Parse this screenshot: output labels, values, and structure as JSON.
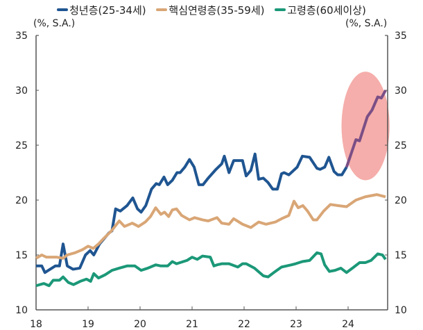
{
  "chart_data": {
    "type": "line",
    "title": "",
    "unit_left": "(%, S.A.)",
    "unit_right": "(%, S.A.)",
    "ylim": [
      10,
      35
    ],
    "yticks": [
      10,
      15,
      20,
      25,
      30,
      35
    ],
    "xlim": [
      18,
      24.77
    ],
    "xticks": [
      18,
      19,
      20,
      21,
      22,
      23,
      24
    ],
    "xtick_labels": [
      "18",
      "19",
      "20",
      "21",
      "22",
      "23",
      "24"
    ],
    "grid": false,
    "legend_position": "top",
    "highlight": {
      "x_range": [
        23.9,
        24.77
      ],
      "y_range": [
        21.8,
        31.7
      ],
      "color": "#f29a96"
    },
    "series": [
      {
        "name": "청년층(25-34세)",
        "color": "#1f5591",
        "highlight_color": "#7b4f86",
        "points": [
          [
            18.0,
            14.0
          ],
          [
            18.11,
            14.0
          ],
          [
            18.17,
            13.4
          ],
          [
            18.37,
            14.0
          ],
          [
            18.45,
            14.0
          ],
          [
            18.52,
            16.0
          ],
          [
            18.6,
            14.0
          ],
          [
            18.71,
            13.7
          ],
          [
            18.84,
            13.8
          ],
          [
            18.95,
            15.0
          ],
          [
            19.04,
            15.4
          ],
          [
            19.11,
            15.0
          ],
          [
            19.22,
            16.0
          ],
          [
            19.4,
            17.0
          ],
          [
            19.46,
            17.2
          ],
          [
            19.53,
            19.2
          ],
          [
            19.62,
            19.0
          ],
          [
            19.75,
            19.5
          ],
          [
            19.86,
            20.2
          ],
          [
            19.95,
            19.2
          ],
          [
            20.02,
            18.9
          ],
          [
            20.11,
            19.5
          ],
          [
            20.22,
            21.0
          ],
          [
            20.31,
            21.5
          ],
          [
            20.37,
            21.4
          ],
          [
            20.46,
            22.1
          ],
          [
            20.53,
            21.4
          ],
          [
            20.62,
            21.8
          ],
          [
            20.71,
            22.5
          ],
          [
            20.77,
            22.5
          ],
          [
            20.86,
            23.0
          ],
          [
            20.95,
            23.7
          ],
          [
            21.04,
            23.0
          ],
          [
            21.13,
            21.4
          ],
          [
            21.21,
            21.4
          ],
          [
            21.31,
            22.0
          ],
          [
            21.46,
            22.8
          ],
          [
            21.57,
            23.3
          ],
          [
            21.62,
            24.0
          ],
          [
            21.71,
            22.5
          ],
          [
            21.8,
            23.6
          ],
          [
            21.97,
            23.6
          ],
          [
            22.04,
            22.2
          ],
          [
            22.13,
            22.7
          ],
          [
            22.21,
            24.2
          ],
          [
            22.28,
            21.9
          ],
          [
            22.37,
            22.0
          ],
          [
            22.46,
            21.6
          ],
          [
            22.55,
            21.0
          ],
          [
            22.64,
            21.0
          ],
          [
            22.72,
            22.4
          ],
          [
            22.77,
            22.5
          ],
          [
            22.86,
            22.3
          ],
          [
            23.02,
            23.0
          ],
          [
            23.12,
            24.0
          ],
          [
            23.26,
            23.9
          ],
          [
            23.4,
            22.9
          ],
          [
            23.46,
            22.8
          ],
          [
            23.55,
            23.0
          ],
          [
            23.63,
            23.9
          ],
          [
            23.73,
            22.6
          ],
          [
            23.8,
            22.3
          ],
          [
            23.88,
            22.3
          ],
          [
            23.97,
            23.0
          ],
          [
            24.15,
            25.5
          ],
          [
            24.22,
            25.4
          ],
          [
            24.37,
            27.6
          ],
          [
            24.46,
            28.2
          ],
          [
            24.57,
            29.4
          ],
          [
            24.64,
            29.3
          ],
          [
            24.72,
            30.0
          ]
        ]
      },
      {
        "name": "핵심연령층(35-59세)",
        "color": "#d9a676",
        "points": [
          [
            18.0,
            14.7
          ],
          [
            18.11,
            15.0
          ],
          [
            18.2,
            14.8
          ],
          [
            18.4,
            14.8
          ],
          [
            18.52,
            14.7
          ],
          [
            18.6,
            15.0
          ],
          [
            18.75,
            15.2
          ],
          [
            18.9,
            15.5
          ],
          [
            19.0,
            15.8
          ],
          [
            19.1,
            15.6
          ],
          [
            19.2,
            16.0
          ],
          [
            19.3,
            16.5
          ],
          [
            19.45,
            17.2
          ],
          [
            19.6,
            18.1
          ],
          [
            19.7,
            17.6
          ],
          [
            19.85,
            17.9
          ],
          [
            19.97,
            17.6
          ],
          [
            20.1,
            18.0
          ],
          [
            20.2,
            18.5
          ],
          [
            20.3,
            19.3
          ],
          [
            20.4,
            18.7
          ],
          [
            20.47,
            18.9
          ],
          [
            20.55,
            18.5
          ],
          [
            20.62,
            19.1
          ],
          [
            20.7,
            19.2
          ],
          [
            20.8,
            18.6
          ],
          [
            20.95,
            18.2
          ],
          [
            21.05,
            18.4
          ],
          [
            21.2,
            18.2
          ],
          [
            21.31,
            18.1
          ],
          [
            21.48,
            18.4
          ],
          [
            21.57,
            17.9
          ],
          [
            21.71,
            17.8
          ],
          [
            21.8,
            18.3
          ],
          [
            21.97,
            17.8
          ],
          [
            22.13,
            17.5
          ],
          [
            22.28,
            18.0
          ],
          [
            22.42,
            17.8
          ],
          [
            22.6,
            18.0
          ],
          [
            22.72,
            18.3
          ],
          [
            22.86,
            18.6
          ],
          [
            22.96,
            19.9
          ],
          [
            23.04,
            19.3
          ],
          [
            23.13,
            19.5
          ],
          [
            23.22,
            19.0
          ],
          [
            23.33,
            18.2
          ],
          [
            23.4,
            18.2
          ],
          [
            23.53,
            19.0
          ],
          [
            23.66,
            19.6
          ],
          [
            23.8,
            19.5
          ],
          [
            23.97,
            19.4
          ],
          [
            24.15,
            20.0
          ],
          [
            24.33,
            20.3
          ],
          [
            24.55,
            20.5
          ],
          [
            24.72,
            20.3
          ]
        ]
      },
      {
        "name": "고령층(60세이상)",
        "color": "#1b9878",
        "points": [
          [
            18.0,
            12.2
          ],
          [
            18.15,
            12.4
          ],
          [
            18.25,
            12.2
          ],
          [
            18.33,
            12.7
          ],
          [
            18.45,
            12.7
          ],
          [
            18.52,
            13.0
          ],
          [
            18.62,
            12.5
          ],
          [
            18.72,
            12.3
          ],
          [
            18.85,
            12.6
          ],
          [
            18.97,
            12.8
          ],
          [
            19.05,
            12.6
          ],
          [
            19.11,
            13.3
          ],
          [
            19.2,
            12.9
          ],
          [
            19.33,
            13.2
          ],
          [
            19.46,
            13.6
          ],
          [
            19.6,
            13.8
          ],
          [
            19.75,
            14.0
          ],
          [
            19.9,
            14.0
          ],
          [
            20.02,
            13.6
          ],
          [
            20.15,
            13.8
          ],
          [
            20.3,
            14.1
          ],
          [
            20.4,
            14.0
          ],
          [
            20.53,
            14.0
          ],
          [
            20.62,
            14.4
          ],
          [
            20.7,
            14.2
          ],
          [
            20.9,
            14.5
          ],
          [
            21.0,
            14.8
          ],
          [
            21.1,
            14.6
          ],
          [
            21.2,
            14.9
          ],
          [
            21.35,
            14.8
          ],
          [
            21.42,
            14.0
          ],
          [
            21.48,
            14.1
          ],
          [
            21.57,
            14.2
          ],
          [
            21.71,
            14.2
          ],
          [
            21.88,
            13.9
          ],
          [
            21.97,
            14.2
          ],
          [
            22.04,
            14.2
          ],
          [
            22.2,
            13.8
          ],
          [
            22.37,
            13.1
          ],
          [
            22.46,
            13.0
          ],
          [
            22.6,
            13.5
          ],
          [
            22.72,
            13.9
          ],
          [
            22.91,
            14.1
          ],
          [
            22.99,
            14.2
          ],
          [
            23.12,
            14.4
          ],
          [
            23.26,
            14.5
          ],
          [
            23.4,
            15.2
          ],
          [
            23.48,
            15.1
          ],
          [
            23.55,
            14.1
          ],
          [
            23.64,
            13.5
          ],
          [
            23.75,
            13.6
          ],
          [
            23.86,
            13.8
          ],
          [
            23.97,
            13.4
          ],
          [
            24.11,
            13.9
          ],
          [
            24.22,
            14.3
          ],
          [
            24.33,
            14.3
          ],
          [
            24.44,
            14.5
          ],
          [
            24.57,
            15.1
          ],
          [
            24.66,
            15.0
          ],
          [
            24.72,
            14.6
          ]
        ]
      }
    ]
  }
}
